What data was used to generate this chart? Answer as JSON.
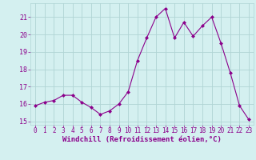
{
  "x": [
    0,
    1,
    2,
    3,
    4,
    5,
    6,
    7,
    8,
    9,
    10,
    11,
    12,
    13,
    14,
    15,
    16,
    17,
    18,
    19,
    20,
    21,
    22,
    23
  ],
  "y": [
    15.9,
    16.1,
    16.2,
    16.5,
    16.5,
    16.1,
    15.8,
    15.4,
    15.6,
    16.0,
    16.7,
    18.5,
    19.8,
    21.0,
    21.5,
    19.8,
    20.7,
    19.9,
    20.5,
    21.0,
    19.5,
    17.8,
    15.9,
    15.1
  ],
  "line_color": "#8b008b",
  "marker": "D",
  "marker_size": 2.0,
  "bg_color": "#d4f0f0",
  "grid_color": "#b0d4d4",
  "xlabel": "Windchill (Refroidissement éolien,°C)",
  "xlabel_color": "#8b008b",
  "tick_color": "#8b008b",
  "ylim": [
    14.8,
    21.8
  ],
  "yticks": [
    15,
    16,
    17,
    18,
    19,
    20,
    21
  ],
  "xlim": [
    -0.5,
    23.5
  ],
  "xticks": [
    0,
    1,
    2,
    3,
    4,
    5,
    6,
    7,
    8,
    9,
    10,
    11,
    12,
    13,
    14,
    15,
    16,
    17,
    18,
    19,
    20,
    21,
    22,
    23
  ],
  "tick_fontsize": 5.5,
  "xlabel_fontsize": 6.5,
  "linewidth": 0.8
}
